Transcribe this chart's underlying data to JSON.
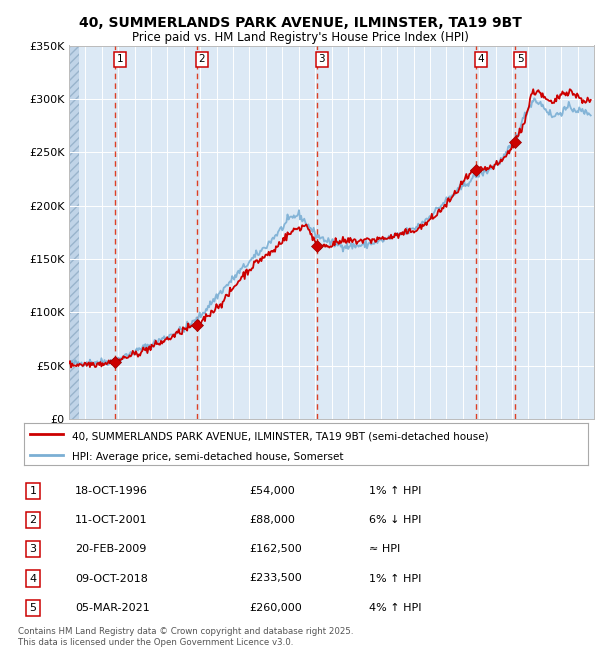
{
  "title_line1": "40, SUMMERLANDS PARK AVENUE, ILMINSTER, TA19 9BT",
  "title_line2": "Price paid vs. HM Land Registry's House Price Index (HPI)",
  "bg_color": "#dce9f5",
  "plot_bg_color": "#dce9f5",
  "grid_color": "#ffffff",
  "hpi_line_color": "#7bafd4",
  "price_line_color": "#cc0000",
  "sale_marker_color": "#cc0000",
  "dashed_line_color": "#cc2200",
  "ylim": [
    0,
    350000
  ],
  "yticks": [
    0,
    50000,
    100000,
    150000,
    200000,
    250000,
    300000,
    350000
  ],
  "ytick_labels": [
    "£0",
    "£50K",
    "£100K",
    "£150K",
    "£200K",
    "£250K",
    "£300K",
    "£350K"
  ],
  "sales": [
    {
      "label": "1",
      "date_x": 1996.8,
      "price": 54000,
      "date_str": "18-OCT-1996",
      "price_str": "£54,000",
      "hpi_pct": "1% ↑ HPI"
    },
    {
      "label": "2",
      "date_x": 2001.8,
      "price": 88000,
      "date_str": "11-OCT-2001",
      "price_str": "£88,000",
      "hpi_pct": "6% ↓ HPI"
    },
    {
      "label": "3",
      "date_x": 2009.1,
      "price": 162500,
      "date_str": "20-FEB-2009",
      "price_str": "£162,500",
      "hpi_pct": "≈ HPI"
    },
    {
      "label": "4",
      "date_x": 2018.8,
      "price": 233500,
      "date_str": "09-OCT-2018",
      "price_str": "£233,500",
      "hpi_pct": "1% ↑ HPI"
    },
    {
      "label": "5",
      "date_x": 2021.2,
      "price": 260000,
      "date_str": "05-MAR-2021",
      "price_str": "£260,000",
      "hpi_pct": "4% ↑ HPI"
    }
  ],
  "legend_line1": "40, SUMMERLANDS PARK AVENUE, ILMINSTER, TA19 9BT (semi-detached house)",
  "legend_line2": "HPI: Average price, semi-detached house, Somerset",
  "footnote": "Contains HM Land Registry data © Crown copyright and database right 2025.\nThis data is licensed under the Open Government Licence v3.0.",
  "xmin": 1994,
  "xmax": 2026
}
